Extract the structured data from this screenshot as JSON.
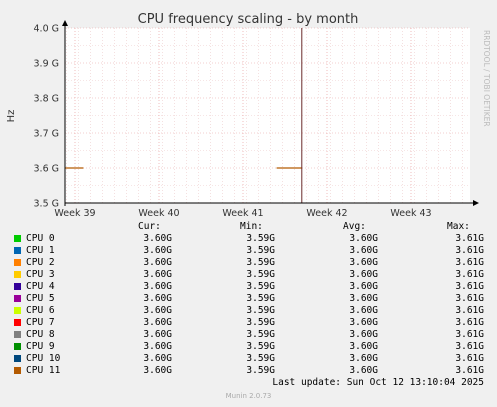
{
  "chart_data": {
    "type": "line",
    "title": "CPU frequency scaling - by month",
    "ylabel": "Hz",
    "watermark": "RRDTOOL / TOBI OETIKER",
    "x_ticks": [
      "Week 39",
      "Week 40",
      "Week 41",
      "Week 42",
      "Week 43"
    ],
    "y_ticks": [
      "4.0 G",
      "3.9 G",
      "3.8 G",
      "3.7 G",
      "3.6 G",
      "3.5 G"
    ],
    "ylim": [
      3.5,
      4.0
    ],
    "grid": true,
    "series_note_values": {
      "segments": [
        {
          "week_start": 38.85,
          "week_end": 39.1,
          "y": 3.6
        },
        {
          "week_start": 41.4,
          "week_end": 41.7,
          "y": 3.6
        }
      ],
      "spike_week": 41.7
    },
    "legend_headers": [
      "Cur:",
      "Min:",
      "Avg:",
      "Max:"
    ],
    "series": [
      {
        "name": "CPU 0",
        "color": "#00cc00",
        "cur": "3.60G",
        "min": "3.59G",
        "avg": "3.60G",
        "max": "3.61G"
      },
      {
        "name": "CPU 1",
        "color": "#0066b3",
        "cur": "3.60G",
        "min": "3.59G",
        "avg": "3.60G",
        "max": "3.61G"
      },
      {
        "name": "CPU 2",
        "color": "#ff8000",
        "cur": "3.60G",
        "min": "3.59G",
        "avg": "3.60G",
        "max": "3.61G"
      },
      {
        "name": "CPU 3",
        "color": "#ffcc00",
        "cur": "3.60G",
        "min": "3.59G",
        "avg": "3.60G",
        "max": "3.61G"
      },
      {
        "name": "CPU 4",
        "color": "#330099",
        "cur": "3.60G",
        "min": "3.59G",
        "avg": "3.60G",
        "max": "3.61G"
      },
      {
        "name": "CPU 5",
        "color": "#990099",
        "cur": "3.60G",
        "min": "3.59G",
        "avg": "3.60G",
        "max": "3.61G"
      },
      {
        "name": "CPU 6",
        "color": "#ccff00",
        "cur": "3.60G",
        "min": "3.59G",
        "avg": "3.60G",
        "max": "3.61G"
      },
      {
        "name": "CPU 7",
        "color": "#ff0000",
        "cur": "3.60G",
        "min": "3.59G",
        "avg": "3.60G",
        "max": "3.61G"
      },
      {
        "name": "CPU 8",
        "color": "#808080",
        "cur": "3.60G",
        "min": "3.59G",
        "avg": "3.60G",
        "max": "3.61G"
      },
      {
        "name": "CPU 9",
        "color": "#008f00",
        "cur": "3.60G",
        "min": "3.59G",
        "avg": "3.60G",
        "max": "3.61G"
      },
      {
        "name": "CPU 10",
        "color": "#00487d",
        "cur": "3.60G",
        "min": "3.59G",
        "avg": "3.60G",
        "max": "3.61G"
      },
      {
        "name": "CPU 11",
        "color": "#b35a00",
        "cur": "3.60G",
        "min": "3.59G",
        "avg": "3.60G",
        "max": "3.61G"
      }
    ],
    "last_update": "Last update: Sun Oct 12 13:10:04 2025",
    "footer": "Munin 2.0.73"
  }
}
